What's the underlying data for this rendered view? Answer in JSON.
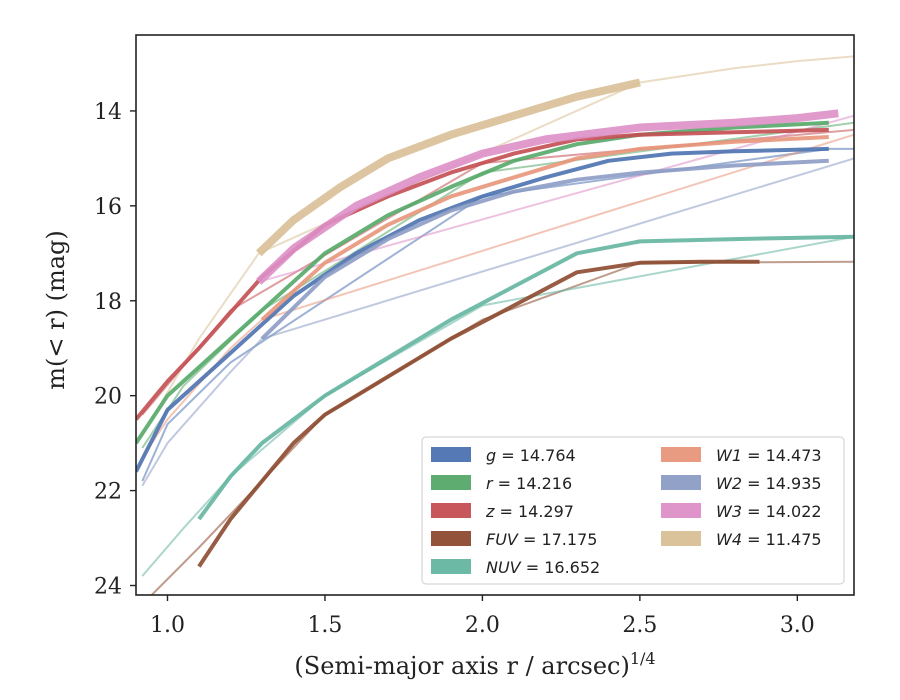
{
  "chart_data": {
    "type": "line",
    "title": "",
    "xlabel": "(Semi-major axis r / arcsec)",
    "xlabel_exponent": "1/4",
    "ylabel": "m(< r) (mag)",
    "xlim": [
      0.9,
      3.18
    ],
    "ylim": [
      24.2,
      12.4
    ],
    "y_inverted": true,
    "grid": false,
    "legend_position": "lower-right",
    "legend_columns": 2,
    "x_ticks": [
      1.0,
      1.5,
      2.0,
      2.5,
      3.0
    ],
    "x_tick_labels": [
      "1.0",
      "1.5",
      "2.0",
      "2.5",
      "3.0"
    ],
    "y_ticks": [
      14,
      16,
      18,
      20,
      22,
      24
    ],
    "y_tick_labels": [
      "14",
      "16",
      "18",
      "20",
      "22",
      "24"
    ],
    "series": [
      {
        "name": "g = 14.764",
        "band": "g",
        "value": "14.764",
        "color": "#4c72b0",
        "thick": [
          [
            0.9,
            21.6
          ],
          [
            1.0,
            20.3
          ],
          [
            1.2,
            19.1
          ],
          [
            1.4,
            17.9
          ],
          [
            1.6,
            17.0
          ],
          [
            1.8,
            16.3
          ],
          [
            2.0,
            15.8
          ],
          [
            2.2,
            15.4
          ],
          [
            2.4,
            15.05
          ],
          [
            2.6,
            14.9
          ],
          [
            2.8,
            14.85
          ],
          [
            3.1,
            14.8
          ]
        ],
        "extended": [
          [
            0.92,
            21.8
          ],
          [
            1.0,
            20.6
          ],
          [
            1.2,
            19.3
          ],
          [
            2.0,
            15.8
          ],
          [
            3.1,
            14.8
          ],
          [
            3.18,
            14.8
          ]
        ]
      },
      {
        "name": "r = 14.216",
        "band": "r",
        "value": "14.216",
        "color": "#55a868",
        "thick": [
          [
            0.9,
            21.0
          ],
          [
            1.0,
            20.0
          ],
          [
            1.1,
            19.4
          ],
          [
            1.3,
            18.2
          ],
          [
            1.5,
            17.0
          ],
          [
            1.7,
            16.2
          ],
          [
            1.9,
            15.6
          ],
          [
            2.1,
            15.05
          ],
          [
            2.3,
            14.7
          ],
          [
            2.5,
            14.5
          ],
          [
            2.8,
            14.35
          ],
          [
            3.1,
            14.25
          ]
        ],
        "extended": [
          [
            0.92,
            21.1
          ],
          [
            1.05,
            19.8
          ],
          [
            1.3,
            18.2
          ],
          [
            2.0,
            15.3
          ],
          [
            3.18,
            14.25
          ]
        ]
      },
      {
        "name": "z = 14.297",
        "band": "z",
        "value": "14.297",
        "color": "#c44e52",
        "thick": [
          [
            0.9,
            20.5
          ],
          [
            1.0,
            19.7
          ],
          [
            1.1,
            19.0
          ],
          [
            1.3,
            17.5
          ],
          [
            1.5,
            16.4
          ],
          [
            1.7,
            15.8
          ],
          [
            1.9,
            15.3
          ],
          [
            2.1,
            14.9
          ],
          [
            2.3,
            14.6
          ],
          [
            2.5,
            14.5
          ],
          [
            2.8,
            14.45
          ],
          [
            3.1,
            14.4
          ]
        ],
        "extended": [
          [
            0.92,
            20.4
          ],
          [
            1.2,
            18.2
          ],
          [
            2.0,
            15.1
          ],
          [
            3.18,
            14.4
          ]
        ]
      },
      {
        "name": "FUV = 17.175",
        "band": "FUV",
        "value": "17.175",
        "color": "#8c4a2f",
        "thick": [
          [
            1.1,
            23.6
          ],
          [
            1.2,
            22.6
          ],
          [
            1.3,
            21.8
          ],
          [
            1.4,
            21.0
          ],
          [
            1.5,
            20.4
          ],
          [
            1.7,
            19.6
          ],
          [
            1.9,
            18.8
          ],
          [
            2.1,
            18.1
          ],
          [
            2.3,
            17.4
          ],
          [
            2.5,
            17.2
          ],
          [
            2.7,
            17.18
          ],
          [
            2.88,
            17.18
          ]
        ],
        "extended": [
          [
            0.95,
            24.2
          ],
          [
            1.1,
            23.2
          ],
          [
            1.3,
            21.8
          ],
          [
            1.5,
            20.4
          ],
          [
            2.0,
            18.4
          ],
          [
            2.5,
            17.2
          ],
          [
            3.18,
            17.18
          ]
        ]
      },
      {
        "name": "NUV = 16.652",
        "band": "NUV",
        "value": "16.652",
        "color": "#64b5a0",
        "thick": [
          [
            1.1,
            22.6
          ],
          [
            1.2,
            21.7
          ],
          [
            1.3,
            21.0
          ],
          [
            1.5,
            20.0
          ],
          [
            1.7,
            19.2
          ],
          [
            1.9,
            18.4
          ],
          [
            2.1,
            17.7
          ],
          [
            2.3,
            17.0
          ],
          [
            2.5,
            16.75
          ],
          [
            2.8,
            16.7
          ],
          [
            3.18,
            16.65
          ]
        ],
        "extended": [
          [
            0.92,
            23.8
          ],
          [
            1.05,
            22.8
          ],
          [
            1.2,
            21.7
          ],
          [
            1.5,
            20.0
          ],
          [
            2.0,
            18.1
          ],
          [
            3.18,
            16.65
          ]
        ]
      },
      {
        "name": "W1 = 14.473",
        "band": "W1",
        "value": "14.473",
        "color": "#e8967a",
        "thick": [
          [
            1.3,
            18.4
          ],
          [
            1.5,
            17.2
          ],
          [
            1.7,
            16.4
          ],
          [
            1.9,
            15.8
          ],
          [
            2.1,
            15.4
          ],
          [
            2.3,
            15.0
          ],
          [
            2.5,
            14.8
          ],
          [
            2.8,
            14.65
          ],
          [
            3.1,
            14.55
          ]
        ],
        "extended": [
          [
            0.92,
            21.3
          ],
          [
            1.0,
            20.5
          ],
          [
            1.2,
            19.0
          ],
          [
            1.3,
            18.4
          ],
          [
            3.18,
            14.5
          ]
        ]
      },
      {
        "name": "W2 = 14.935",
        "band": "W2",
        "value": "14.935",
        "color": "#8c9cc4",
        "thick": [
          [
            1.3,
            18.8
          ],
          [
            1.5,
            17.5
          ],
          [
            1.7,
            16.7
          ],
          [
            1.9,
            16.1
          ],
          [
            2.1,
            15.7
          ],
          [
            2.3,
            15.45
          ],
          [
            2.5,
            15.3
          ],
          [
            2.8,
            15.15
          ],
          [
            3.1,
            15.05
          ]
        ],
        "extended": [
          [
            0.92,
            21.9
          ],
          [
            1.0,
            21.0
          ],
          [
            1.2,
            19.5
          ],
          [
            1.3,
            18.8
          ],
          [
            3.18,
            15.0
          ]
        ]
      },
      {
        "name": "W3 = 14.022",
        "band": "W3",
        "value": "14.022",
        "color": "#dd8fc7",
        "thick": [
          [
            1.29,
            17.6
          ],
          [
            1.4,
            16.9
          ],
          [
            1.6,
            16.0
          ],
          [
            1.8,
            15.4
          ],
          [
            2.0,
            14.9
          ],
          [
            2.2,
            14.6
          ],
          [
            2.5,
            14.35
          ],
          [
            2.8,
            14.25
          ],
          [
            3.0,
            14.15
          ],
          [
            3.13,
            14.05
          ]
        ],
        "extended": [
          [
            1.29,
            17.6
          ],
          [
            3.18,
            14.1
          ]
        ]
      },
      {
        "name": "W4 = 11.475",
        "band": "W4",
        "value": "11.475",
        "color": "#d8bf96",
        "thick": [
          [
            1.29,
            17.0
          ],
          [
            1.4,
            16.3
          ],
          [
            1.55,
            15.6
          ],
          [
            1.7,
            15.0
          ],
          [
            1.9,
            14.5
          ],
          [
            2.1,
            14.1
          ],
          [
            2.3,
            13.7
          ],
          [
            2.5,
            13.4
          ]
        ],
        "extended": [
          [
            0.95,
            20.5
          ],
          [
            1.1,
            18.8
          ],
          [
            1.29,
            17.0
          ],
          [
            2.5,
            13.4
          ],
          [
            2.8,
            13.1
          ],
          [
            3.0,
            12.95
          ],
          [
            3.18,
            12.85
          ]
        ]
      }
    ]
  }
}
